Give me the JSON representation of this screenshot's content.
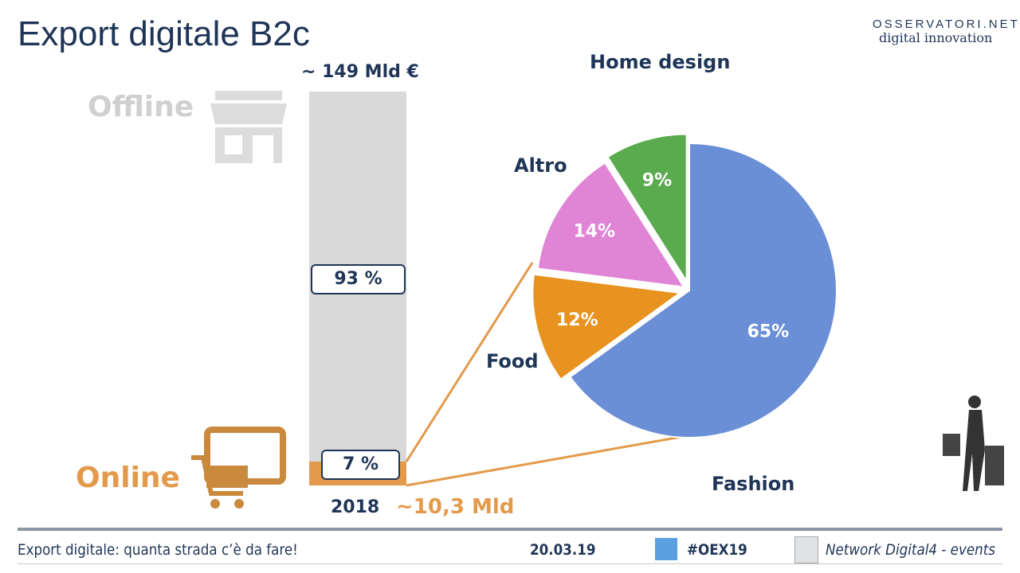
{
  "header": {
    "title": "Export digitale B2c",
    "logo_line1": "OSSERVATORI.NET",
    "logo_line2": "digital innovation"
  },
  "chart_data": [
    {
      "type": "bar",
      "title": "",
      "categories": [
        "2018"
      ],
      "total_label": "~ 149 Mld €",
      "series": [
        {
          "name": "Offline",
          "values": [
            93
          ],
          "label": "93 %"
        },
        {
          "name": "Online",
          "values": [
            7
          ],
          "label": "7 %"
        }
      ],
      "online_value_label": "~10,3 Mld",
      "ylim": [
        0,
        100
      ],
      "colors": {
        "Offline": "#d9d9d9",
        "Online": "#e39a4b"
      }
    },
    {
      "type": "pie",
      "title": "",
      "slices": [
        {
          "label": "Fashion",
          "value": 65,
          "text": "65%",
          "color": "#6a8fd6"
        },
        {
          "label": "Food",
          "value": 12,
          "text": "12%",
          "color": "#e8921f"
        },
        {
          "label": "Altro",
          "value": 14,
          "text": "14%",
          "color": "#e084d6"
        },
        {
          "label": "Home design",
          "value": 9,
          "text": "9%",
          "color": "#5aaa4e"
        }
      ]
    }
  ],
  "footer": {
    "subtitle": "Export digitale: quanta strada c’è da fare!",
    "date": "20.03.19",
    "hashtag": "#OEX19",
    "network": "Network Digital4 - events"
  }
}
